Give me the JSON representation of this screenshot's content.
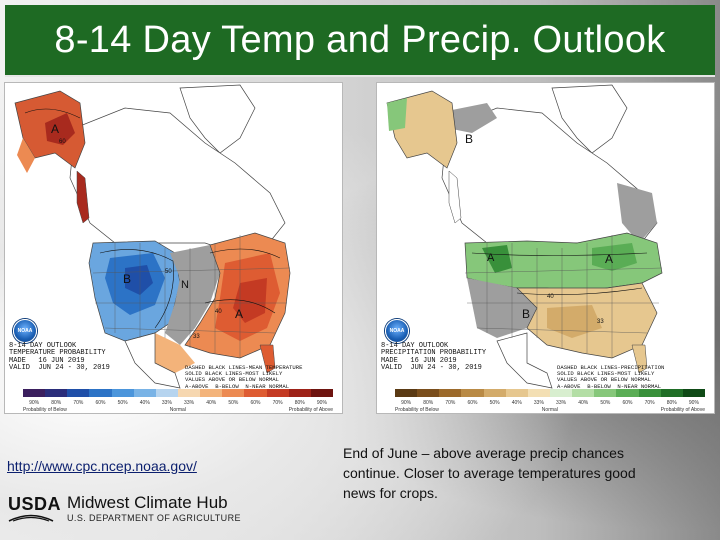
{
  "slide": {
    "title": "8-14 Day Temp and Precip. Outlook",
    "link_text": "http://www.cpc.ncep.noaa.gov/",
    "note": "End of June – above average precip chances continue.  Closer to average temperatures good news for crops."
  },
  "footer": {
    "usda": "USDA",
    "hub": "Midwest Climate Hub",
    "department": "U.S. DEPARTMENT OF AGRICULTURE"
  },
  "maps": {
    "temperature": {
      "caption": "8-14 DAY OUTLOOK\nTEMPERATURE PROBABILITY\nMADE   16 JUN 2019\nVALID  JUN 24 - 30, 2019",
      "key_caption": "DASHED BLACK LINES-MEAN TEMPERATURE\nSOLID BLACK LINES-MOST LIKELY\nVALUES ABOVE OR BELOW NORMAL\nA-ABOVE  B-BELOW  N-NEAR NORMAL",
      "scale_labels": [
        "90%",
        "80%",
        "70%",
        "60%",
        "50%",
        "40%",
        "33%",
        "33%",
        "40%",
        "50%",
        "60%",
        "70%",
        "80%",
        "90%"
      ],
      "below_caption": "Probability of Below",
      "normal_caption": "Normal",
      "above_caption": "Probability of Above",
      "scale_colors": [
        "#3b1f5e",
        "#2a2d7a",
        "#1f4fa8",
        "#2c73c6",
        "#4b95db",
        "#79b3e6",
        "#b6d4ef",
        "#f6d7b0",
        "#f3b37a",
        "#ec8a52",
        "#de5c32",
        "#c43a23",
        "#9e2218",
        "#6e1410"
      ],
      "labels": {
        "alaska": "A",
        "west": "B",
        "center": "N",
        "east": "A",
        "pct1": "60",
        "pct2": "50",
        "pct3": "40",
        "pct4": "33"
      }
    },
    "precipitation": {
      "caption": "8-14 DAY OUTLOOK\nPRECIPITATION PROBABILITY\nMADE   16 JUN 2019\nVALID  JUN 24 - 30, 2019",
      "key_caption": "DASHED BLACK LINES-PRECIPITATION\nSOLID BLACK LINES-MOST LIKELY\nVALUES ABOVE OR BELOW NORMAL\nA-ABOVE  B-BELOW  N-NEAR NORMAL",
      "scale_labels": [
        "90%",
        "80%",
        "70%",
        "60%",
        "50%",
        "40%",
        "33%",
        "33%",
        "40%",
        "50%",
        "60%",
        "70%",
        "80%",
        "90%"
      ],
      "below_caption": "Probability of Below",
      "normal_caption": "Normal",
      "above_caption": "Probability of Above",
      "scale_colors": [
        "#5a3a14",
        "#7a4e1c",
        "#9c6a2b",
        "#b98a45",
        "#d3ab6a",
        "#e6c78f",
        "#f3dfb4",
        "#d8eecf",
        "#b3dea5",
        "#86c77a",
        "#5aad55",
        "#38903a",
        "#1f6e26",
        "#0f4a16"
      ],
      "labels": {
        "alaska": "B",
        "north": "A",
        "center": "A",
        "south": "B",
        "pct1": "40",
        "pct2": "33"
      }
    }
  },
  "logos": {
    "noaa": "NOAA"
  }
}
